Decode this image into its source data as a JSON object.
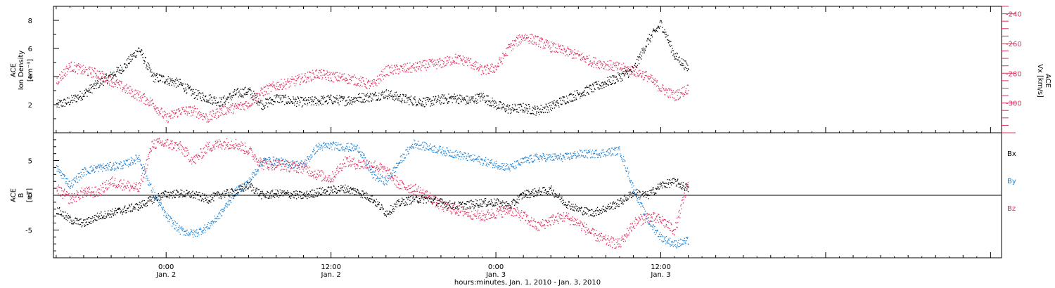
{
  "colors": {
    "black": "#000000",
    "red": "#e0315e",
    "blue": "#1f84d6"
  },
  "chart_data": [
    {
      "type": "scatter",
      "panel": "top",
      "ylabel_left": [
        "ACE",
        "Ion Density",
        "[cm⁻³]"
      ],
      "ylabel_right": [
        "ACE",
        "Vx [km/s]"
      ],
      "y_ticks_left": [
        "2",
        "4",
        "6",
        "8"
      ],
      "y_ticks_right": [
        "-240",
        "-260",
        "-280",
        "-300"
      ],
      "ylim_left": [
        0,
        9
      ],
      "ylim_right": [
        -320,
        -235
      ],
      "x_hours_range": [
        -8.2,
        60.8
      ],
      "series": [
        {
          "axis": "left",
          "color": "black",
          "x": [
            -8,
            -7,
            -6,
            -5,
            -4,
            -3,
            -2,
            -1,
            0,
            1,
            2,
            3,
            4,
            5,
            6,
            7,
            8,
            9,
            10,
            11,
            12,
            13,
            14,
            15,
            16,
            17,
            18,
            19,
            20,
            21,
            22,
            23,
            24,
            25,
            26,
            27,
            28,
            29,
            30,
            31,
            32,
            33,
            34,
            35,
            36,
            37,
            38
          ],
          "y": [
            2.0,
            2.3,
            2.8,
            3.5,
            4.1,
            4.8,
            6.0,
            4.0,
            3.8,
            3.5,
            2.8,
            2.5,
            2.2,
            2.8,
            3.0,
            2.0,
            2.5,
            2.3,
            2.2,
            2.3,
            2.4,
            2.3,
            2.5,
            2.6,
            2.8,
            2.5,
            2.3,
            2.2,
            2.4,
            2.5,
            2.3,
            2.6,
            2.0,
            1.7,
            1.8,
            1.6,
            1.9,
            2.4,
            2.8,
            3.2,
            3.6,
            4.0,
            4.5,
            6.5,
            7.8,
            5.5,
            4.6
          ]
        },
        {
          "axis": "right",
          "color": "red",
          "x": [
            -8,
            -7,
            -6,
            -5,
            -4,
            -3,
            -2,
            -1,
            0,
            1,
            2,
            3,
            4,
            5,
            6,
            7,
            8,
            9,
            10,
            11,
            12,
            13,
            14,
            15,
            16,
            17,
            18,
            19,
            20,
            21,
            22,
            23,
            24,
            25,
            26,
            27,
            28,
            29,
            30,
            31,
            32,
            33,
            34,
            35,
            36,
            37,
            38
          ],
          "y": [
            -285,
            -275,
            -278,
            -280,
            -285,
            -290,
            -295,
            -300,
            -310,
            -305,
            -305,
            -310,
            -305,
            -303,
            -300,
            -292,
            -288,
            -286,
            -283,
            -280,
            -282,
            -283,
            -285,
            -288,
            -278,
            -277,
            -276,
            -274,
            -273,
            -270,
            -272,
            -278,
            -276,
            -262,
            -255,
            -258,
            -262,
            -265,
            -268,
            -272,
            -274,
            -276,
            -278,
            -282,
            -290,
            -295,
            -290
          ]
        }
      ]
    },
    {
      "type": "scatter",
      "panel": "bottom",
      "ylabel_left": [
        "ACE",
        "B",
        "[nT]"
      ],
      "y_ticks_left": [
        "5",
        "0",
        "-5"
      ],
      "ylim_left": [
        -9,
        9
      ],
      "x_hours_range": [
        -8.2,
        60.8
      ],
      "legend": [
        "Bx",
        "By",
        "Bz"
      ],
      "series": [
        {
          "name": "Bx",
          "color": "black",
          "x": [
            -8,
            -7,
            -6,
            -5,
            -4,
            -3,
            -2,
            -1,
            0,
            1,
            2,
            3,
            4,
            5,
            6,
            7,
            8,
            9,
            10,
            11,
            12,
            13,
            14,
            15,
            16,
            17,
            18,
            19,
            20,
            21,
            22,
            23,
            24,
            25,
            26,
            27,
            28,
            29,
            30,
            31,
            32,
            33,
            34,
            35,
            36,
            37,
            38
          ],
          "y": [
            -2.0,
            -3.5,
            -4.0,
            -3.0,
            -2.5,
            -2.0,
            -1.5,
            -0.5,
            0.2,
            0.3,
            0.1,
            -0.5,
            0.2,
            0.5,
            1.5,
            0.0,
            0.3,
            0.2,
            0.0,
            0.5,
            0.8,
            1.0,
            0.5,
            -0.5,
            -2.5,
            -1.0,
            -0.5,
            -0.5,
            -1.0,
            -1.5,
            -1.3,
            -1.0,
            -1.0,
            -1.5,
            0.2,
            0.5,
            0.8,
            -1.0,
            -2.0,
            -2.5,
            -1.8,
            -1.0,
            0.5,
            0.0,
            1.5,
            2.0,
            1.0
          ]
        },
        {
          "name": "By",
          "color": "blue",
          "x": [
            -8,
            -7,
            -6,
            -5,
            -4,
            -3,
            -2,
            -1,
            0,
            1,
            2,
            3,
            4,
            5,
            6,
            7,
            8,
            9,
            10,
            11,
            12,
            13,
            14,
            15,
            16,
            17,
            18,
            19,
            20,
            21,
            22,
            23,
            24,
            25,
            26,
            27,
            28,
            29,
            30,
            31,
            32,
            33,
            34,
            35,
            36,
            37,
            38
          ],
          "y": [
            4.0,
            1.5,
            3.5,
            4.0,
            4.2,
            4.5,
            5.5,
            0.5,
            -3.0,
            -5.0,
            -5.5,
            -4.5,
            -2.5,
            0.5,
            2.0,
            5.0,
            5.0,
            4.5,
            4.5,
            7.0,
            7.2,
            7.0,
            6.8,
            3.0,
            2.0,
            5.0,
            7.5,
            7.0,
            6.5,
            6.0,
            5.5,
            5.0,
            4.5,
            4.0,
            5.0,
            5.5,
            5.5,
            5.5,
            6.0,
            6.0,
            6.2,
            6.5,
            1.0,
            -3.5,
            -6.0,
            -7.0,
            -6.5
          ]
        },
        {
          "name": "Bz",
          "color": "red",
          "x": [
            -8,
            -7,
            -6,
            -5,
            -4,
            -3,
            -2,
            -1,
            0,
            1,
            2,
            3,
            4,
            5,
            6,
            7,
            8,
            9,
            10,
            11,
            12,
            13,
            14,
            15,
            16,
            17,
            18,
            19,
            20,
            21,
            22,
            23,
            24,
            25,
            26,
            27,
            28,
            29,
            30,
            31,
            32,
            33,
            34,
            35,
            36,
            37,
            38
          ],
          "y": [
            1.0,
            -0.5,
            0.5,
            0.5,
            2.0,
            1.5,
            1.0,
            7.5,
            7.5,
            7.0,
            5.0,
            7.0,
            7.5,
            7.5,
            6.5,
            4.5,
            4.5,
            4.2,
            4.0,
            3.0,
            2.5,
            5.0,
            4.5,
            4.5,
            3.5,
            1.5,
            1.0,
            0.0,
            -1.5,
            -2.0,
            -2.5,
            -3.0,
            -2.5,
            -2.0,
            -3.0,
            -4.5,
            -3.5,
            -3.0,
            -4.0,
            -5.5,
            -6.5,
            -7.0,
            -4.0,
            -3.0,
            -3.5,
            -5.0,
            2.0
          ]
        }
      ]
    }
  ],
  "x_axis": {
    "ticks": [
      {
        "hour": 0,
        "time": "0:00",
        "date": "Jan. 2"
      },
      {
        "hour": 12,
        "time": "12:00",
        "date": "Jan. 2"
      },
      {
        "hour": 24,
        "time": "0:00",
        "date": "Jan. 3"
      },
      {
        "hour": 36,
        "time": "12:00",
        "date": "Jan. 3"
      }
    ],
    "label": "hours:minutes, Jan.  1, 2010 - Jan.  3, 2010"
  }
}
